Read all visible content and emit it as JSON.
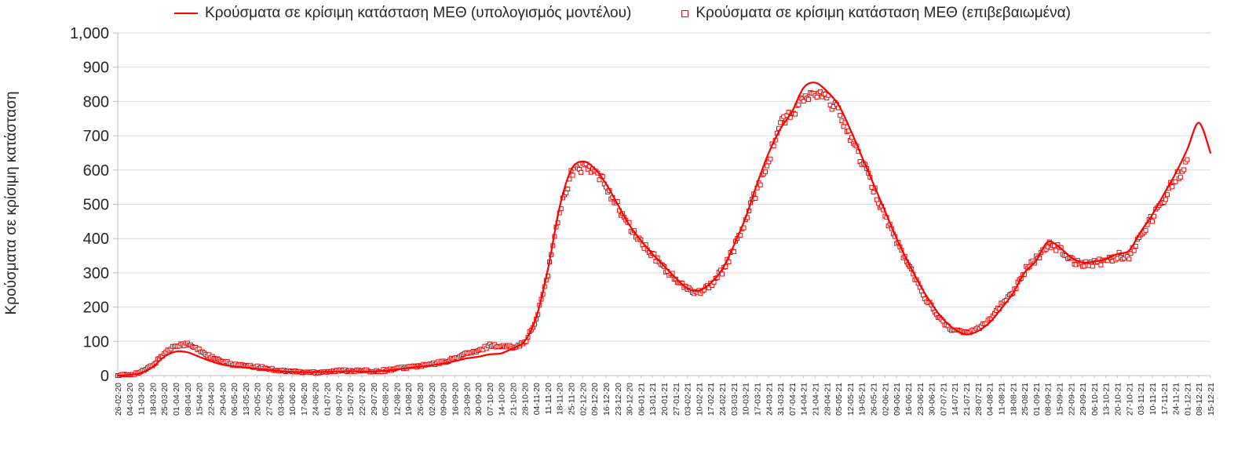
{
  "legend": {
    "model_label": "Κρούσματα σε κρίσιμη κατάσταση ΜΕΘ (υπολογισμός μοντέλου)",
    "confirmed_label": "Κρούσματα σε κρίσιμη κατάσταση ΜΕΘ (επιβεβαιωμένα)"
  },
  "chart_data": {
    "type": "line",
    "title": "",
    "xlabel": "",
    "ylabel": "Κρούσματα σε κρίσιμη κατάσταση",
    "ylim": [
      0,
      1000
    ],
    "ytick_step": 100,
    "grid": "horizontal",
    "legend_position": "top-center",
    "colors": {
      "accent": "#FF0000",
      "grid": "#D9D9D9",
      "axis": "#BFBFBF",
      "text": "#262626"
    },
    "categories": [
      "26-02-20",
      "04-03-20",
      "11-03-20",
      "18-03-20",
      "25-03-20",
      "01-04-20",
      "08-04-20",
      "15-04-20",
      "22-04-20",
      "29-04-20",
      "06-05-20",
      "13-05-20",
      "20-05-20",
      "27-05-20",
      "03-06-20",
      "10-06-20",
      "17-06-20",
      "24-06-20",
      "01-07-20",
      "08-07-20",
      "15-07-20",
      "22-07-20",
      "29-07-20",
      "05-08-20",
      "12-08-20",
      "19-08-20",
      "26-08-20",
      "02-09-20",
      "09-09-20",
      "16-09-20",
      "23-09-20",
      "30-09-20",
      "07-10-20",
      "14-10-20",
      "21-10-20",
      "28-10-20",
      "04-11-20",
      "11-11-20",
      "18-11-20",
      "25-11-20",
      "02-12-20",
      "09-12-20",
      "16-12-20",
      "23-12-20",
      "30-12-20",
      "06-01-21",
      "13-01-21",
      "20-01-21",
      "27-01-21",
      "03-02-21",
      "10-02-21",
      "17-02-21",
      "24-02-21",
      "03-03-21",
      "10-03-21",
      "17-03-21",
      "24-03-21",
      "31-03-21",
      "07-04-21",
      "14-04-21",
      "21-04-21",
      "28-04-21",
      "05-05-21",
      "12-05-21",
      "19-05-21",
      "26-05-21",
      "02-06-21",
      "09-06-21",
      "16-06-21",
      "23-06-21",
      "30-06-21",
      "07-07-21",
      "14-07-21",
      "21-07-21",
      "28-07-21",
      "04-08-21",
      "11-08-21",
      "18-08-21",
      "25-08-21",
      "01-09-21",
      "08-09-21",
      "15-09-21",
      "22-09-21",
      "29-09-21",
      "06-10-21",
      "13-10-21",
      "20-10-21",
      "27-10-21",
      "03-11-21",
      "10-11-21",
      "17-11-21",
      "24-11-21",
      "01-12-21",
      "08-12-21",
      "15-12-21"
    ],
    "series": [
      {
        "name": "Κρούσματα σε κρίσιμη κατάσταση ΜΕΘ (υπολογισμός μοντέλου)",
        "style": "line",
        "values": [
          0,
          2,
          8,
          25,
          55,
          70,
          68,
          55,
          42,
          32,
          27,
          23,
          20,
          17,
          13,
          11,
          10,
          10,
          11,
          12,
          13,
          12,
          12,
          14,
          18,
          22,
          26,
          30,
          35,
          42,
          50,
          55,
          62,
          65,
          80,
          100,
          170,
          310,
          490,
          600,
          625,
          605,
          560,
          500,
          440,
          395,
          355,
          320,
          285,
          255,
          248,
          270,
          310,
          380,
          460,
          560,
          650,
          720,
          770,
          840,
          855,
          830,
          790,
          720,
          640,
          560,
          480,
          400,
          330,
          265,
          210,
          165,
          135,
          120,
          130,
          155,
          195,
          240,
          300,
          335,
          390,
          375,
          345,
          330,
          333,
          340,
          355,
          365,
          420,
          470,
          530,
          590,
          660,
          738,
          650
        ]
      },
      {
        "name": "Κρούσματα σε κρίσιμη κατάσταση ΜΕΘ (επιβεβαιωμένα)",
        "style": "open-square-markers",
        "values": [
          0,
          3,
          10,
          30,
          65,
          90,
          92,
          75,
          55,
          40,
          33,
          28,
          25,
          20,
          15,
          12,
          10,
          10,
          12,
          14,
          15,
          14,
          13,
          15,
          20,
          25,
          28,
          33,
          40,
          50,
          65,
          70,
          90,
          85,
          85,
          95,
          160,
          300,
          480,
          590,
          610,
          595,
          555,
          495,
          435,
          390,
          350,
          315,
          280,
          250,
          245,
          265,
          305,
          370,
          450,
          545,
          630,
          740,
          760,
          810,
          820,
          810,
          770,
          700,
          625,
          545,
          470,
          390,
          325,
          255,
          200,
          155,
          130,
          125,
          140,
          165,
          205,
          245,
          305,
          340,
          385,
          370,
          340,
          325,
          330,
          335,
          350,
          345,
          415,
          460,
          520,
          575,
          620,
          null,
          null
        ]
      }
    ]
  }
}
